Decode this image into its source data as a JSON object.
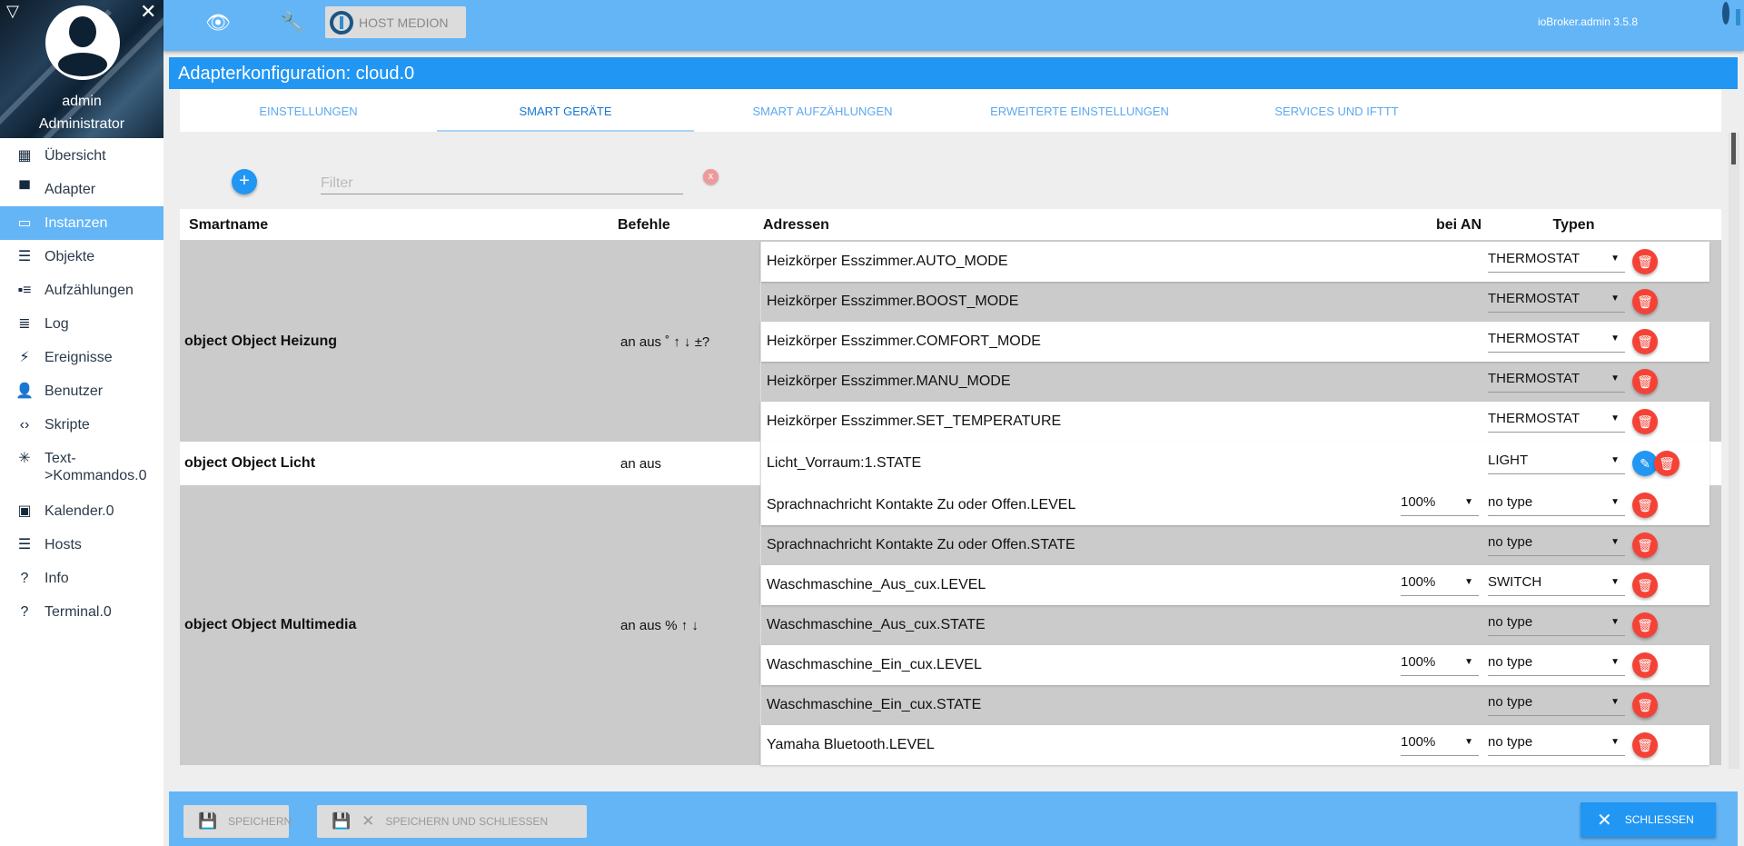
{
  "user": {
    "name": "admin",
    "role": "Administrator"
  },
  "sidebar": {
    "items": [
      {
        "label": "Übersicht",
        "icon": "grid-icon",
        "glyph": "▦"
      },
      {
        "label": "Adapter",
        "icon": "store-icon",
        "glyph": "▀"
      },
      {
        "label": "Instanzen",
        "icon": "subtitles-icon",
        "glyph": "▭",
        "active": true
      },
      {
        "label": "Objekte",
        "icon": "list-icon",
        "glyph": "☰"
      },
      {
        "label": "Aufzählungen",
        "icon": "enum-icon",
        "glyph": "▪≡"
      },
      {
        "label": "Log",
        "icon": "log-lines-icon",
        "glyph": "≣"
      },
      {
        "label": "Ereignisse",
        "icon": "flash-icon",
        "glyph": "⚡"
      },
      {
        "label": "Benutzer",
        "icon": "user-icon",
        "glyph": "👤"
      },
      {
        "label": "Skripte",
        "icon": "code-icon",
        "glyph": "‹›"
      },
      {
        "label": "Text->Kommandos.0",
        "line1": "Text-",
        "line2": ">Kommandos.0",
        "icon": "snowflake-icon",
        "glyph": "✳"
      },
      {
        "label": "Kalender.0",
        "icon": "calendar-contact-icon",
        "glyph": "▣"
      },
      {
        "label": "Hosts",
        "icon": "server-icon",
        "glyph": "☰"
      },
      {
        "label": "Info",
        "icon": "help-icon",
        "glyph": "?"
      },
      {
        "label": "Terminal.0",
        "icon": "help-icon",
        "glyph": "?"
      }
    ]
  },
  "topbar": {
    "host_label": "HOST MEDION",
    "version": "ioBroker.admin 3.5.8"
  },
  "dialog": {
    "title": "Adapterkonfiguration: cloud.0",
    "tabs": [
      "EINSTELLUNGEN",
      "SMART GERÄTE",
      "SMART AUFZÄHLUNGEN",
      "ERWEITERTE EINSTELLUNGEN",
      "SERVICES UND IFTTT"
    ],
    "active_tab": 1,
    "filter_placeholder": "Filter",
    "filter_value": "",
    "clear_label": "x",
    "add_label": "+"
  },
  "table": {
    "headers": {
      "smartname": "Smartname",
      "befehle": "Befehle",
      "adressen": "Adressen",
      "bei_an": "bei AN",
      "typen": "Typen"
    },
    "groups": [
      {
        "name": "object Object Heizung",
        "commands": "an aus ˚ ↑ ↓ ±?",
        "rows": [
          {
            "address": "Heizkörper Esszimmer.AUTO_MODE",
            "on": "",
            "type": "THERMOSTAT"
          },
          {
            "address": "Heizkörper Esszimmer.BOOST_MODE",
            "on": "",
            "type": "THERMOSTAT"
          },
          {
            "address": "Heizkörper Esszimmer.COMFORT_MODE",
            "on": "",
            "type": "THERMOSTAT"
          },
          {
            "address": "Heizkörper Esszimmer.MANU_MODE",
            "on": "",
            "type": "THERMOSTAT"
          },
          {
            "address": "Heizkörper Esszimmer.SET_TEMPERATURE",
            "on": "",
            "type": "THERMOSTAT"
          }
        ]
      },
      {
        "name": "object Object Licht",
        "commands": "an aus",
        "single": true,
        "rows": [
          {
            "address": "Licht_Vorraum:1.STATE",
            "on": "",
            "type": "LIGHT",
            "editable": true
          }
        ]
      },
      {
        "name": "object Object Multimedia",
        "commands": "an aus % ↑ ↓",
        "rows": [
          {
            "address": "Sprachnachricht Kontakte Zu oder Offen.LEVEL",
            "on": "100%",
            "type": "no type"
          },
          {
            "address": "Sprachnachricht Kontakte Zu oder Offen.STATE",
            "on": "",
            "type": "no type"
          },
          {
            "address": "Waschmaschine_Aus_cux.LEVEL",
            "on": "100%",
            "type": "SWITCH"
          },
          {
            "address": "Waschmaschine_Aus_cux.STATE",
            "on": "",
            "type": "no type"
          },
          {
            "address": "Waschmaschine_Ein_cux.LEVEL",
            "on": "100%",
            "type": "no type"
          },
          {
            "address": "Waschmaschine_Ein_cux.STATE",
            "on": "",
            "type": "no type"
          },
          {
            "address": "Yamaha Bluetooth.LEVEL",
            "on": "100%",
            "type": "no type"
          }
        ]
      }
    ]
  },
  "footer": {
    "save": "SPEICHERN",
    "save_close": "SPEICHERN UND SCHLIESSEN",
    "close": "SCHLIESSEN"
  },
  "colors": {
    "primary": "#2196f3",
    "topbar": "#64b5f6",
    "danger": "#f44336"
  }
}
